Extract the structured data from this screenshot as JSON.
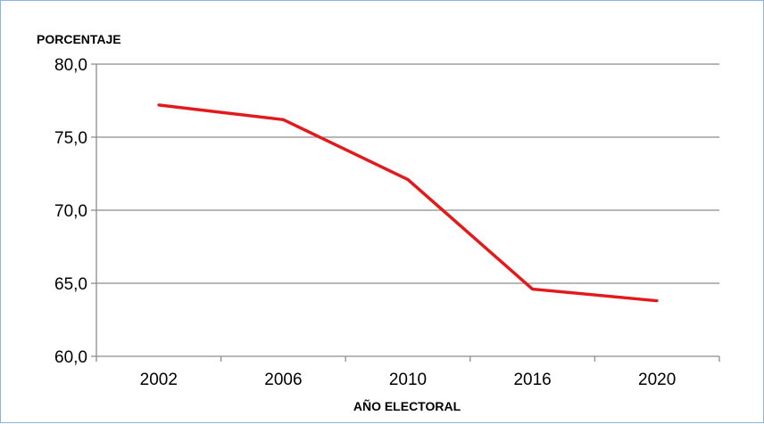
{
  "chart_data": {
    "type": "line",
    "title": "",
    "ylabel": "PORCENTAJE",
    "xlabel": "AÑO ELECTORAL",
    "categories": [
      "2002",
      "2006",
      "2010",
      "2016",
      "2020"
    ],
    "series": [
      {
        "values": [
          77.2,
          76.2,
          72.1,
          64.6,
          63.8
        ]
      }
    ],
    "ylim": [
      60,
      80
    ],
    "yticks": [
      "60,0",
      "65,0",
      "70,0",
      "75,0",
      "80,0"
    ],
    "ytick_values": [
      60,
      65,
      70,
      75,
      80
    ],
    "line_color": "#e31a1c",
    "grid": true,
    "legend": "none"
  }
}
